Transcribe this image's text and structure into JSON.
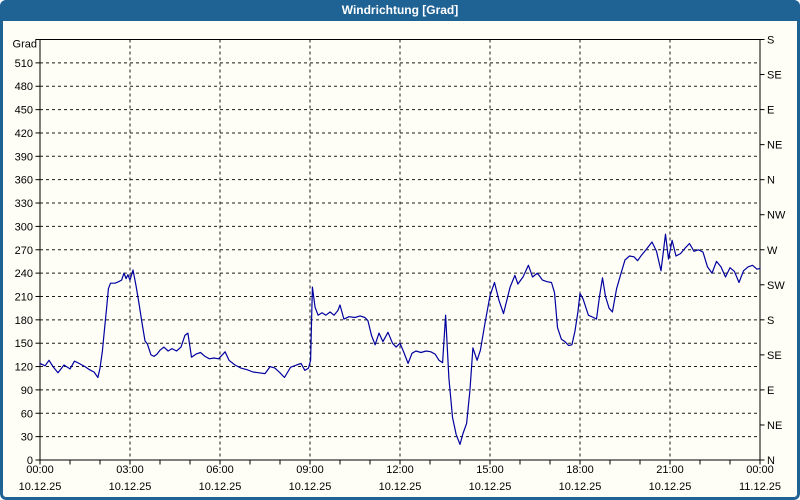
{
  "window": {
    "title": "Windrichtung [Grad]"
  },
  "colors": {
    "titlebar_bg": "#1f6395",
    "titlebar_text": "#ffffff",
    "window_bg": "#fffef6",
    "border": "#1f6395",
    "line": "#0000a0",
    "axis": "#000000",
    "grid": "#1a1a1a"
  },
  "chart_data": {
    "type": "line",
    "title": "Windrichtung [Grad]",
    "grid": {
      "style": "dashed",
      "horizontal_step_deg": 30,
      "vertical_step_hours": 3
    },
    "y_axis_left": {
      "label": "Grad",
      "min": 0,
      "max": 540,
      "tick_step": 30,
      "labeled_max": 510
    },
    "y_axis_right": {
      "tick_step": 45,
      "labels": [
        "N",
        "NE",
        "E",
        "SE",
        "S",
        "SW",
        "W",
        "NW",
        "N",
        "NE",
        "E",
        "SE",
        "S"
      ]
    },
    "x_axis": {
      "range_hours": [
        0,
        24
      ],
      "minor_tick_interval_hours": 1,
      "major_tick_interval_hours": 3,
      "ticks": [
        {
          "hour": 0,
          "time": "00:00",
          "date": "10.12.25"
        },
        {
          "hour": 3,
          "time": "03:00",
          "date": "10.12.25"
        },
        {
          "hour": 6,
          "time": "06:00",
          "date": "10.12.25"
        },
        {
          "hour": 9,
          "time": "09:00",
          "date": "10.12.25"
        },
        {
          "hour": 12,
          "time": "12:00",
          "date": "10.12.25"
        },
        {
          "hour": 15,
          "time": "15:00",
          "date": "10.12.25"
        },
        {
          "hour": 18,
          "time": "18:00",
          "date": "10.12.25"
        },
        {
          "hour": 21,
          "time": "21:00",
          "date": "10.12.25"
        },
        {
          "hour": 24,
          "time": "00:00",
          "date": "11.12.25"
        }
      ]
    },
    "series": [
      {
        "name": "Windrichtung",
        "color": "#0000a0",
        "points": [
          [
            0,
            124
          ],
          [
            0.17,
            121
          ],
          [
            0.3,
            128
          ],
          [
            0.45,
            119
          ],
          [
            0.6,
            112
          ],
          [
            0.8,
            122
          ],
          [
            1.0,
            117
          ],
          [
            1.15,
            127
          ],
          [
            1.3,
            124
          ],
          [
            1.5,
            120
          ],
          [
            1.65,
            116
          ],
          [
            1.8,
            113
          ],
          [
            1.93,
            106
          ],
          [
            2.0,
            118
          ],
          [
            2.08,
            140
          ],
          [
            2.15,
            168
          ],
          [
            2.22,
            195
          ],
          [
            2.28,
            220
          ],
          [
            2.35,
            227
          ],
          [
            2.5,
            227
          ],
          [
            2.62,
            229
          ],
          [
            2.72,
            231
          ],
          [
            2.8,
            240
          ],
          [
            2.87,
            233
          ],
          [
            2.93,
            238
          ],
          [
            3.0,
            231
          ],
          [
            3.1,
            244
          ],
          [
            3.2,
            224
          ],
          [
            3.3,
            201
          ],
          [
            3.4,
            176
          ],
          [
            3.5,
            153
          ],
          [
            3.58,
            149
          ],
          [
            3.7,
            135
          ],
          [
            3.8,
            133
          ],
          [
            3.9,
            136
          ],
          [
            4.0,
            141
          ],
          [
            4.13,
            145
          ],
          [
            4.27,
            140
          ],
          [
            4.4,
            143
          ],
          [
            4.55,
            140
          ],
          [
            4.7,
            145
          ],
          [
            4.83,
            160
          ],
          [
            4.93,
            163
          ],
          [
            5.05,
            132
          ],
          [
            5.2,
            136
          ],
          [
            5.35,
            138
          ],
          [
            5.5,
            133
          ],
          [
            5.65,
            130
          ],
          [
            5.8,
            131
          ],
          [
            5.95,
            130
          ],
          [
            6.05,
            134
          ],
          [
            6.17,
            139
          ],
          [
            6.3,
            128
          ],
          [
            6.5,
            122
          ],
          [
            6.7,
            118
          ],
          [
            6.9,
            116
          ],
          [
            7.1,
            113
          ],
          [
            7.3,
            112
          ],
          [
            7.5,
            111
          ],
          [
            7.67,
            120
          ],
          [
            7.83,
            118
          ],
          [
            8.0,
            112
          ],
          [
            8.15,
            106
          ],
          [
            8.35,
            119
          ],
          [
            8.55,
            122
          ],
          [
            8.7,
            124
          ],
          [
            8.83,
            115
          ],
          [
            8.95,
            118
          ],
          [
            9.02,
            128
          ],
          [
            9.08,
            222
          ],
          [
            9.17,
            196
          ],
          [
            9.27,
            186
          ],
          [
            9.4,
            189
          ],
          [
            9.53,
            186
          ],
          [
            9.67,
            190
          ],
          [
            9.8,
            186
          ],
          [
            9.93,
            192
          ],
          [
            10.0,
            199
          ],
          [
            10.13,
            181
          ],
          [
            10.3,
            184
          ],
          [
            10.5,
            183
          ],
          [
            10.67,
            185
          ],
          [
            10.83,
            183
          ],
          [
            10.93,
            179
          ],
          [
            11.05,
            160
          ],
          [
            11.17,
            148
          ],
          [
            11.3,
            163
          ],
          [
            11.43,
            152
          ],
          [
            11.6,
            164
          ],
          [
            11.75,
            150
          ],
          [
            11.87,
            145
          ],
          [
            12.0,
            150
          ],
          [
            12.13,
            138
          ],
          [
            12.27,
            124
          ],
          [
            12.4,
            137
          ],
          [
            12.53,
            140
          ],
          [
            12.7,
            138
          ],
          [
            12.87,
            140
          ],
          [
            13.03,
            139
          ],
          [
            13.17,
            136
          ],
          [
            13.3,
            128
          ],
          [
            13.42,
            125
          ],
          [
            13.52,
            186
          ],
          [
            13.63,
            105
          ],
          [
            13.75,
            55
          ],
          [
            13.87,
            33
          ],
          [
            14.0,
            20
          ],
          [
            14.1,
            34
          ],
          [
            14.22,
            47
          ],
          [
            14.33,
            89
          ],
          [
            14.43,
            144
          ],
          [
            14.57,
            128
          ],
          [
            14.68,
            141
          ],
          [
            14.83,
            175
          ],
          [
            15.0,
            211
          ],
          [
            15.15,
            228
          ],
          [
            15.3,
            205
          ],
          [
            15.45,
            188
          ],
          [
            15.67,
            222
          ],
          [
            15.83,
            237
          ],
          [
            15.93,
            226
          ],
          [
            16.1,
            235
          ],
          [
            16.28,
            250
          ],
          [
            16.42,
            235
          ],
          [
            16.58,
            240
          ],
          [
            16.75,
            231
          ],
          [
            16.9,
            229
          ],
          [
            17.05,
            228
          ],
          [
            17.15,
            215
          ],
          [
            17.25,
            170
          ],
          [
            17.38,
            155
          ],
          [
            17.5,
            152
          ],
          [
            17.62,
            147
          ],
          [
            17.73,
            148
          ],
          [
            17.83,
            165
          ],
          [
            17.93,
            190
          ],
          [
            18.0,
            214
          ],
          [
            18.1,
            207
          ],
          [
            18.28,
            186
          ],
          [
            18.45,
            183
          ],
          [
            18.55,
            181
          ],
          [
            18.65,
            210
          ],
          [
            18.75,
            234
          ],
          [
            18.85,
            210
          ],
          [
            18.97,
            195
          ],
          [
            19.08,
            190
          ],
          [
            19.22,
            220
          ],
          [
            19.37,
            240
          ],
          [
            19.5,
            257
          ],
          [
            19.65,
            262
          ],
          [
            19.8,
            261
          ],
          [
            19.92,
            256
          ],
          [
            20.05,
            263
          ],
          [
            20.2,
            270
          ],
          [
            20.4,
            280
          ],
          [
            20.55,
            268
          ],
          [
            20.7,
            243
          ],
          [
            20.85,
            290
          ],
          [
            20.95,
            258
          ],
          [
            21.07,
            282
          ],
          [
            21.2,
            262
          ],
          [
            21.35,
            265
          ],
          [
            21.5,
            272
          ],
          [
            21.65,
            278
          ],
          [
            21.8,
            268
          ],
          [
            21.95,
            270
          ],
          [
            22.1,
            267
          ],
          [
            22.25,
            248
          ],
          [
            22.4,
            240
          ],
          [
            22.55,
            255
          ],
          [
            22.7,
            248
          ],
          [
            22.85,
            235
          ],
          [
            23.0,
            247
          ],
          [
            23.15,
            242
          ],
          [
            23.3,
            228
          ],
          [
            23.45,
            243
          ],
          [
            23.6,
            248
          ],
          [
            23.75,
            250
          ],
          [
            23.9,
            245
          ],
          [
            24.0,
            246
          ]
        ]
      }
    ]
  }
}
